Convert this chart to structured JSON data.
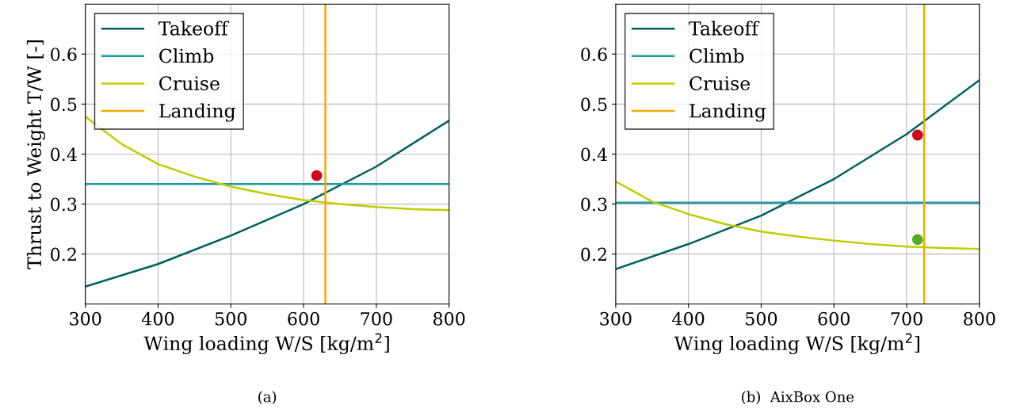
{
  "chart_data": [
    {
      "type": "line",
      "ylabel": "Thrust to Weight T/W [-]",
      "xlabel": "Wing loading W/S [kg/m$^{2}$]",
      "annotations": [
        "(a)"
      ],
      "xlim": [
        300,
        800
      ],
      "xticks": [
        300,
        400,
        500,
        600,
        700,
        800
      ],
      "ylim": [
        0.1,
        0.7
      ],
      "yticks": [
        0.2,
        0.3,
        0.4,
        0.5,
        0.6
      ],
      "grid": true,
      "legend": "top left",
      "series": [
        {
          "name": "Takeoff",
          "color": "#00605f",
          "x": [
            300,
            400,
            500,
            600,
            700,
            800
          ],
          "values": [
            0.135,
            0.18,
            0.237,
            0.3,
            0.375,
            0.467
          ]
        },
        {
          "name": "Climb",
          "color": "#1a9a9e",
          "x": [
            300,
            800
          ],
          "values": [
            0.34,
            0.34
          ]
        },
        {
          "name": "Cruise",
          "color": "#bdcd00",
          "x": [
            300,
            350,
            400,
            450,
            500,
            550,
            600,
            650,
            700,
            750,
            800
          ],
          "values": [
            0.475,
            0.42,
            0.38,
            0.355,
            0.335,
            0.32,
            0.308,
            0.3,
            0.294,
            0.29,
            0.288
          ]
        },
        {
          "name": "Landing",
          "color": "#f6a800",
          "x": [
            630,
            630
          ],
          "values": [
            0.1,
            0.7
          ]
        },
        {
          "type": "scatter",
          "color": "#cc071e",
          "x": [
            618
          ],
          "values": [
            0.357
          ]
        }
      ]
    },
    {
      "type": "line",
      "xlabel": "Wing loading W/S [kg/m$^{2}$]",
      "annotations": [
        "(b)  AixBox One"
      ],
      "xlim": [
        300,
        800
      ],
      "xticks": [
        300,
        400,
        500,
        600,
        700,
        800
      ],
      "ylim": [
        0.1,
        0.7
      ],
      "yticks": [
        0.2,
        0.3,
        0.4,
        0.5,
        0.6
      ],
      "grid": true,
      "legend": "top left",
      "series": [
        {
          "name": "Takeoff",
          "color": "#00605f",
          "x": [
            300,
            400,
            500,
            600,
            700,
            800
          ],
          "values": [
            0.17,
            0.22,
            0.277,
            0.35,
            0.44,
            0.548
          ]
        },
        {
          "name": "Climb",
          "color": "#1a9a9e",
          "x": [
            300,
            800
          ],
          "values": [
            0.303,
            0.303
          ]
        },
        {
          "name": "Cruise",
          "color": "#bdcd00",
          "x": [
            300,
            350,
            400,
            450,
            500,
            550,
            600,
            650,
            700,
            750,
            800
          ],
          "values": [
            0.345,
            0.305,
            0.28,
            0.26,
            0.245,
            0.235,
            0.227,
            0.22,
            0.215,
            0.212,
            0.21
          ]
        },
        {
          "name": "Landing",
          "color": "#f6a800",
          "x": [
            724,
            724
          ],
          "values": [
            0.1,
            0.7
          ]
        },
        {
          "type": "scatter",
          "color": "#cc071e",
          "x": [
            715
          ],
          "values": [
            0.438
          ]
        },
        {
          "type": "scatter",
          "color": "#57ab27",
          "x": [
            715
          ],
          "values": [
            0.229
          ]
        }
      ]
    }
  ]
}
